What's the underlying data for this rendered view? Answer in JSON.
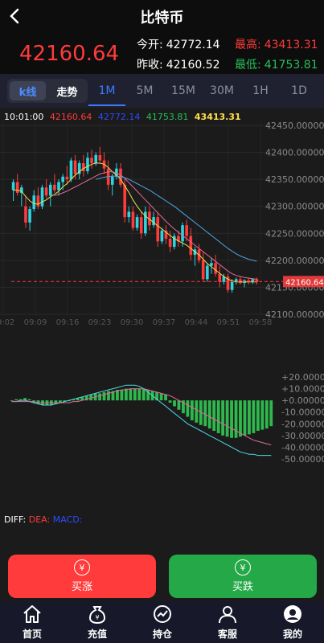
{
  "header": {
    "title": "比特币"
  },
  "quote": {
    "price": "42160.64",
    "open_label": "今开:",
    "open_value": "42772.14",
    "high_label": "最高:",
    "high_value": "43413.31",
    "prev_label": "昨收:",
    "prev_value": "42160.52",
    "low_label": "最低:",
    "low_value": "41753.81"
  },
  "tabs": {
    "segment": [
      "k线",
      "走势"
    ],
    "timeframes": [
      "1M",
      "5M",
      "15M",
      "30M",
      "1H",
      "1D"
    ],
    "active": "1M"
  },
  "legend": {
    "time": "10:01:00",
    "v1": "42160.64",
    "v2": "42772.14",
    "v3": "41753.81",
    "v4": "43413.31"
  },
  "colors": {
    "up": "#2ed3e0",
    "down": "#ff3b3b",
    "buy": "#ff3b3b",
    "sell": "#25a847",
    "accent": "#3d7cff"
  },
  "chart_data": [
    {
      "type": "candlestick",
      "ylim": [
        42100,
        42450
      ],
      "y_ticks": [
        "42450.00000",
        "42400.00000",
        "42350.00000",
        "42300.00000",
        "42250.00000",
        "42200.00000",
        "42150.00000",
        "42100.00000"
      ],
      "x_ticks": [
        "09:02",
        "09:09",
        "09:16",
        "09:23",
        "09:30",
        "09:37",
        "09:44",
        "09:51",
        "09:58"
      ],
      "current_price_label": "42160.64",
      "current_price": 42160.64,
      "ohlc": [
        [
          42330,
          42350,
          42310,
          42345
        ],
        [
          42345,
          42360,
          42320,
          42325
        ],
        [
          42325,
          42340,
          42300,
          42335
        ],
        [
          42300,
          42320,
          42260,
          42270
        ],
        [
          42270,
          42300,
          42255,
          42295
        ],
        [
          42295,
          42330,
          42290,
          42320
        ],
        [
          42320,
          42335,
          42295,
          42300
        ],
        [
          42300,
          42340,
          42295,
          42335
        ],
        [
          42335,
          42350,
          42315,
          42320
        ],
        [
          42320,
          42345,
          42300,
          42340
        ],
        [
          42340,
          42360,
          42325,
          42330
        ],
        [
          42330,
          42350,
          42320,
          42345
        ],
        [
          42345,
          42360,
          42330,
          42355
        ],
        [
          42355,
          42375,
          42340,
          42350
        ],
        [
          42350,
          42390,
          42345,
          42385
        ],
        [
          42385,
          42395,
          42350,
          42360
        ],
        [
          42360,
          42385,
          42350,
          42380
        ],
        [
          42380,
          42395,
          42355,
          42365
        ],
        [
          42365,
          42400,
          42360,
          42390
        ],
        [
          42390,
          42405,
          42370,
          42380
        ],
        [
          42380,
          42400,
          42375,
          42395
        ],
        [
          42395,
          42410,
          42380,
          42385
        ],
        [
          42385,
          42400,
          42360,
          42370
        ],
        [
          42370,
          42385,
          42330,
          42340
        ],
        [
          42340,
          42360,
          42320,
          42355
        ],
        [
          42355,
          42380,
          42350,
          42370
        ],
        [
          42370,
          42380,
          42335,
          42340
        ],
        [
          42340,
          42350,
          42270,
          42280
        ],
        [
          42280,
          42300,
          42270,
          42290
        ],
        [
          42290,
          42300,
          42255,
          42260
        ],
        [
          42260,
          42285,
          42255,
          42280
        ],
        [
          42280,
          42290,
          42240,
          42250
        ],
        [
          42250,
          42300,
          42245,
          42290
        ],
        [
          42290,
          42300,
          42255,
          42265
        ],
        [
          42265,
          42290,
          42260,
          42280
        ],
        [
          42280,
          42290,
          42225,
          42235
        ],
        [
          42235,
          42260,
          42230,
          42255
        ],
        [
          42255,
          42265,
          42230,
          42240
        ],
        [
          42240,
          42255,
          42215,
          42225
        ],
        [
          42225,
          42250,
          42220,
          42245
        ],
        [
          42245,
          42255,
          42225,
          42235
        ],
        [
          42235,
          42270,
          42225,
          42265
        ],
        [
          42265,
          42275,
          42235,
          42245
        ],
        [
          42245,
          42260,
          42200,
          42210
        ],
        [
          42210,
          42225,
          42190,
          42220
        ],
        [
          42220,
          42230,
          42195,
          42200
        ],
        [
          42200,
          42215,
          42160,
          42165
        ],
        [
          42165,
          42195,
          42160,
          42190
        ],
        [
          42190,
          42205,
          42175,
          42195
        ],
        [
          42195,
          42210,
          42170,
          42175
        ],
        [
          42175,
          42190,
          42150,
          42160
        ],
        [
          42160,
          42175,
          42155,
          42170
        ],
        [
          42170,
          42175,
          42140,
          42145
        ],
        [
          42145,
          42165,
          42140,
          42160
        ],
        [
          42160,
          42168,
          42155,
          42165
        ],
        [
          42165,
          42170,
          42155,
          42158
        ],
        [
          42158,
          42165,
          42150,
          42163
        ],
        [
          42163,
          42168,
          42155,
          42160
        ],
        [
          42160,
          42166,
          42156,
          42165
        ],
        [
          42165,
          42168,
          42155,
          42160
        ]
      ],
      "ma_series": [
        {
          "color": "#e6e04d",
          "values": [
            42330,
            42330,
            42328,
            42318,
            42310,
            42305,
            42304,
            42308,
            42312,
            42318,
            42322,
            42328,
            42336,
            42342,
            42350,
            42358,
            42364,
            42370,
            42374,
            42378,
            42380,
            42380,
            42378,
            42372,
            42364,
            42358,
            42350,
            42338,
            42326,
            42312,
            42300,
            42290,
            42282,
            42276,
            42270,
            42264,
            42258,
            42252,
            42246,
            42240,
            42236,
            42232,
            42228,
            42222,
            42216,
            42210,
            42202,
            42194,
            42188,
            42182,
            42176,
            42170,
            42165,
            42162,
            42160,
            42160,
            42160,
            42160,
            42160,
            42160
          ]
        },
        {
          "color": "#e06a9a",
          "values": [
            null,
            null,
            null,
            null,
            null,
            null,
            null,
            null,
            null,
            null,
            42320,
            42322,
            42325,
            42328,
            42332,
            42336,
            42340,
            42344,
            42348,
            42352,
            42356,
            42360,
            42362,
            42364,
            42364,
            42362,
            42358,
            42352,
            42344,
            42336,
            42328,
            42320,
            42312,
            42304,
            42296,
            42288,
            42280,
            42272,
            42265,
            42258,
            42252,
            42246,
            42240,
            42234,
            42228,
            42222,
            42216,
            42210,
            42204,
            42198,
            42192,
            42186,
            42180,
            42175,
            42172,
            42170,
            42168,
            42167,
            42166,
            42165
          ]
        },
        {
          "color": "#4da3e6",
          "values": [
            null,
            null,
            null,
            null,
            null,
            null,
            null,
            null,
            null,
            null,
            null,
            null,
            null,
            null,
            null,
            null,
            null,
            null,
            null,
            null,
            42350,
            42352,
            42354,
            42355,
            42356,
            42356,
            42355,
            42353,
            42350,
            42346,
            42342,
            42338,
            42334,
            42330,
            42325,
            42320,
            42315,
            42310,
            42305,
            42300,
            42294,
            42288,
            42282,
            42276,
            42270,
            42264,
            42258,
            42252,
            42246,
            42240,
            42234,
            42228,
            42222,
            42217,
            42212,
            42208,
            42205,
            42202,
            42200,
            42198
          ]
        }
      ]
    },
    {
      "type": "bar",
      "name": "MACD",
      "ylim": [
        -50,
        20
      ],
      "y_ticks": [
        "+20.00000",
        "+10.00000",
        "+0.00000",
        "-10.00000",
        "-20.00000",
        "-30.00000",
        "-40.00000",
        "-50.00000"
      ],
      "histogram": [
        0,
        1,
        1,
        2,
        1,
        -2,
        -3,
        -4,
        -4,
        -4,
        -3,
        -2,
        -1,
        0,
        1,
        2,
        3,
        4,
        5,
        6,
        6,
        7,
        8,
        8,
        9,
        9,
        10,
        10,
        10,
        10,
        10,
        9,
        8,
        7,
        6,
        5,
        -2,
        -5,
        -8,
        -11,
        -14,
        -17,
        -19,
        -21,
        -22,
        -24,
        -26,
        -28,
        -30,
        -31,
        -32,
        -32,
        -31,
        -30,
        -29,
        -28,
        -26,
        -25,
        -24,
        -22
      ],
      "diff": [
        -1,
        -1,
        0,
        0,
        -1,
        -2,
        -3,
        -4,
        -4,
        -4,
        -3,
        -2,
        -1,
        0,
        1,
        2,
        3,
        4,
        5,
        6,
        7,
        8,
        9,
        10,
        11,
        12,
        13,
        13,
        13,
        12,
        10,
        7,
        4,
        1,
        -2,
        -5,
        -8,
        -11,
        -14,
        -17,
        -20,
        -22,
        -24,
        -26,
        -28,
        -30,
        -32,
        -34,
        -36,
        -38,
        -40,
        -42,
        -44,
        -45,
        -46,
        -46,
        -47,
        -47,
        -47,
        -47
      ],
      "dea": [
        -1,
        -1,
        -1,
        -1,
        -1,
        -1,
        -2,
        -2,
        -2,
        -2,
        -2,
        -2,
        -2,
        -2,
        -1,
        -1,
        0,
        1,
        2,
        3,
        4,
        5,
        6,
        7,
        8,
        9,
        9,
        10,
        10,
        10,
        10,
        9,
        8,
        7,
        6,
        5,
        4,
        2,
        0,
        -2,
        -4,
        -6,
        -8,
        -10,
        -12,
        -14,
        -16,
        -18,
        -20,
        -22,
        -24,
        -26,
        -28,
        -30,
        -32,
        -34,
        -35,
        -36,
        -37,
        -38
      ]
    }
  ],
  "macd_legend": {
    "diff": "DIFF:",
    "dea": "DEA:",
    "macd": "MACD:"
  },
  "actions": {
    "buy_up": "买涨",
    "buy_down": "买跌"
  },
  "nav": [
    "首页",
    "充值",
    "持仓",
    "客服",
    "我的"
  ]
}
